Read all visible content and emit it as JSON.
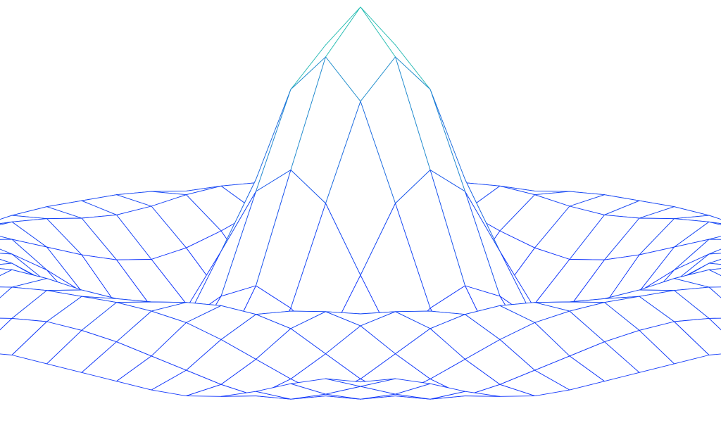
{
  "chart_data": {
    "type": "surface",
    "colors": [
      "#1030ff",
      "#2fe0a0"
    ],
    "x": [
      -10,
      -9,
      -8,
      -7,
      -6,
      -5,
      -4,
      -3,
      -2,
      -1,
      0,
      1,
      2,
      3,
      4,
      5,
      6,
      7,
      8,
      9,
      10
    ],
    "y": [
      -10,
      -9,
      -8,
      -7,
      -6,
      -5,
      -4,
      -3,
      -2,
      -1,
      0,
      1,
      2,
      3,
      4,
      5,
      6,
      7,
      8,
      9,
      10
    ],
    "z": [
      [
        0.07,
        0.06,
        0.02,
        -0.03,
        -0.07,
        -0.09,
        -0.09,
        -0.08,
        -0.07,
        -0.06,
        -0.05,
        -0.06,
        -0.07,
        -0.08,
        -0.09,
        -0.09,
        -0.07,
        -0.03,
        0.02,
        0.06,
        0.07
      ],
      [
        0.06,
        0.01,
        -0.04,
        -0.08,
        -0.09,
        -0.07,
        -0.04,
        -0.01,
        0.02,
        0.04,
        0.05,
        0.04,
        0.02,
        -0.01,
        -0.04,
        -0.07,
        -0.09,
        -0.08,
        -0.04,
        0.01,
        0.06
      ],
      [
        0.02,
        -0.04,
        -0.08,
        -0.09,
        -0.05,
        0,
        0.05,
        0.09,
        0.11,
        0.12,
        0.12,
        0.12,
        0.11,
        0.09,
        0.05,
        0,
        -0.05,
        -0.09,
        -0.08,
        -0.04,
        0.02
      ],
      [
        -0.03,
        -0.08,
        -0.09,
        -0.05,
        0.02,
        0.09,
        0.12,
        0.13,
        0.12,
        0.1,
        0.09,
        0.1,
        0.12,
        0.13,
        0.12,
        0.09,
        0.02,
        -0.05,
        -0.09,
        -0.08,
        -0.03
      ],
      [
        -0.07,
        -0.09,
        -0.05,
        0.02,
        0.1,
        0.13,
        0.11,
        0.06,
        0.01,
        -0.03,
        -0.05,
        -0.03,
        0.01,
        0.06,
        0.11,
        0.13,
        0.1,
        0.02,
        -0.05,
        -0.09,
        -0.07
      ],
      [
        -0.09,
        -0.07,
        0,
        0.09,
        0.13,
        0.1,
        0.02,
        -0.08,
        -0.15,
        -0.18,
        -0.19,
        -0.18,
        -0.15,
        -0.08,
        0.02,
        0.1,
        0.13,
        0.09,
        0,
        -0.07,
        -0.09
      ],
      [
        -0.09,
        -0.04,
        0.05,
        0.12,
        0.11,
        0.02,
        -0.1,
        -0.19,
        -0.22,
        -0.2,
        -0.19,
        -0.2,
        -0.22,
        -0.19,
        -0.1,
        0.02,
        0.11,
        0.12,
        0.05,
        -0.04,
        -0.09
      ],
      [
        -0.08,
        -0.01,
        0.09,
        0.13,
        0.06,
        -0.08,
        -0.19,
        -0.21,
        -0.12,
        -0.01,
        0.05,
        -0.01,
        -0.12,
        -0.21,
        -0.19,
        -0.08,
        0.06,
        0.13,
        0.09,
        -0.01,
        -0.08
      ],
      [
        -0.07,
        0.02,
        0.11,
        0.12,
        0.01,
        -0.15,
        -0.22,
        -0.12,
        0.11,
        0.35,
        0.45,
        0.35,
        0.11,
        -0.12,
        -0.22,
        -0.15,
        0.01,
        0.12,
        0.11,
        0.02,
        -0.07
      ],
      [
        -0.06,
        0.04,
        0.12,
        0.1,
        -0.03,
        -0.18,
        -0.2,
        -0.01,
        0.35,
        0.7,
        0.84,
        0.7,
        0.35,
        -0.01,
        -0.2,
        -0.18,
        -0.03,
        0.1,
        0.12,
        0.04,
        -0.06
      ],
      [
        -0.05,
        0.05,
        0.12,
        0.09,
        -0.05,
        -0.19,
        -0.19,
        0.05,
        0.45,
        0.84,
        1,
        0.84,
        0.45,
        0.05,
        -0.19,
        -0.19,
        -0.05,
        0.09,
        0.12,
        0.05,
        -0.05
      ],
      [
        -0.06,
        0.04,
        0.12,
        0.1,
        -0.03,
        -0.18,
        -0.2,
        -0.01,
        0.35,
        0.7,
        0.84,
        0.7,
        0.35,
        -0.01,
        -0.2,
        -0.18,
        -0.03,
        0.1,
        0.12,
        0.04,
        -0.06
      ],
      [
        -0.07,
        0.02,
        0.11,
        0.12,
        0.01,
        -0.15,
        -0.22,
        -0.12,
        0.11,
        0.35,
        0.45,
        0.35,
        0.11,
        -0.12,
        -0.22,
        -0.15,
        0.01,
        0.12,
        0.11,
        0.02,
        -0.07
      ],
      [
        -0.08,
        -0.01,
        0.09,
        0.13,
        0.06,
        -0.08,
        -0.19,
        -0.21,
        -0.12,
        -0.01,
        0.05,
        -0.01,
        -0.12,
        -0.21,
        -0.19,
        -0.08,
        0.06,
        0.13,
        0.09,
        -0.01,
        -0.08
      ],
      [
        -0.09,
        -0.04,
        0.05,
        0.12,
        0.11,
        0.02,
        -0.1,
        -0.19,
        -0.22,
        -0.2,
        -0.19,
        -0.2,
        -0.22,
        -0.19,
        -0.1,
        0.02,
        0.11,
        0.12,
        0.05,
        -0.04,
        -0.09
      ],
      [
        -0.09,
        -0.07,
        0,
        0.09,
        0.13,
        0.1,
        0.02,
        -0.08,
        -0.15,
        -0.18,
        -0.19,
        -0.18,
        -0.15,
        -0.08,
        0.02,
        0.1,
        0.13,
        0.09,
        0,
        -0.07,
        -0.09
      ],
      [
        -0.07,
        -0.09,
        -0.05,
        0.02,
        0.1,
        0.13,
        0.11,
        0.06,
        0.01,
        -0.03,
        -0.05,
        -0.03,
        0.01,
        0.06,
        0.11,
        0.13,
        0.1,
        0.02,
        -0.05,
        -0.09,
        -0.07
      ],
      [
        -0.03,
        -0.08,
        -0.09,
        -0.05,
        0.02,
        0.09,
        0.12,
        0.13,
        0.12,
        0.1,
        0.09,
        0.1,
        0.12,
        0.13,
        0.12,
        0.09,
        0.02,
        -0.05,
        -0.09,
        -0.08,
        -0.03
      ],
      [
        0.02,
        -0.04,
        -0.08,
        -0.09,
        -0.05,
        0,
        0.05,
        0.09,
        0.11,
        0.12,
        0.12,
        0.12,
        0.11,
        0.09,
        0.05,
        0,
        -0.05,
        -0.09,
        -0.08,
        -0.04,
        0.02
      ],
      [
        0.06,
        0.01,
        -0.04,
        -0.08,
        -0.09,
        -0.07,
        -0.04,
        -0.01,
        0.02,
        0.04,
        0.05,
        0.04,
        0.02,
        -0.01,
        -0.04,
        -0.07,
        -0.09,
        -0.08,
        -0.04,
        0.01,
        0.06
      ],
      [
        0.07,
        0.06,
        0.02,
        -0.03,
        -0.07,
        -0.09,
        -0.09,
        -0.08,
        -0.07,
        -0.06,
        -0.05,
        -0.06,
        -0.07,
        -0.08,
        -0.09,
        -0.09,
        -0.07,
        -0.03,
        0.02,
        0.06,
        0.07
      ]
    ]
  }
}
